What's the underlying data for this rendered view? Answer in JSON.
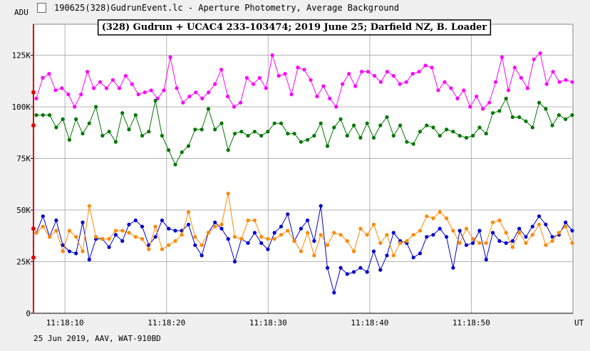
{
  "window": {
    "title": "190625(328)GudrunEvent.lc - Aperture Photometry, Average Background"
  },
  "footer": {
    "text": "25 Jun 2019, AAV, WAT-910BD"
  },
  "colors": {
    "background": "#ffffff",
    "grid": "#b4b4b4",
    "axis": "#000000",
    "left_axis_line": "#dd0000",
    "magenta": "#ff00ff",
    "green": "#007700",
    "blue": "#0000cc",
    "orange": "#ff8800"
  },
  "chart_data": {
    "type": "line",
    "title": "(328) Gudrun + UCAC4 233-103474; 2019 June 25; Darfield NZ, B. Loader",
    "ylabel": "ADU",
    "xlabel": "UT",
    "ylim": [
      0,
      140000
    ],
    "y_ticks": [
      0,
      25000,
      50000,
      75000,
      100000,
      125000
    ],
    "y_tick_labels": [
      "0",
      "25K",
      "50K",
      "75K",
      "100K",
      "125K"
    ],
    "x_ticks": [
      "11:18:10",
      "11:18:20",
      "11:18:30",
      "11:18:40",
      "11:18:50"
    ],
    "x_start": "11:18:06.9",
    "x_end": "11:19:00.0",
    "grid": true,
    "series": [
      {
        "color": "#ff00ff",
        "start_marker_value": 107000,
        "values": [
          104000,
          114000,
          116000,
          108000,
          109000,
          106000,
          100000,
          106000,
          117000,
          109000,
          112000,
          109000,
          113000,
          109000,
          115000,
          111000,
          106000,
          107000,
          108000,
          104000,
          108000,
          124000,
          109000,
          102000,
          105000,
          107000,
          104000,
          107000,
          111000,
          118000,
          105000,
          100000,
          102000,
          114000,
          111000,
          114000,
          109000,
          125000,
          115000,
          116000,
          106000,
          119000,
          118000,
          113000,
          105000,
          110000,
          104000,
          100000,
          111000,
          116000,
          110000,
          117000,
          117000,
          115000,
          112000,
          117000,
          115000,
          111000,
          112000,
          116000,
          117000,
          120000,
          119000,
          108000,
          112000,
          109000,
          104000,
          108000,
          100000,
          105000,
          99000,
          102000,
          112000,
          124000,
          108000,
          119000,
          114000,
          109000,
          123000,
          126000,
          111000,
          117000,
          112000,
          113000,
          112000
        ]
      },
      {
        "color": "#007700",
        "start_marker_value": 91000,
        "values": [
          96000,
          96000,
          96000,
          90000,
          94000,
          84000,
          94000,
          87000,
          92000,
          100000,
          86000,
          88000,
          83000,
          97000,
          89000,
          96000,
          86000,
          88000,
          103000,
          86000,
          79000,
          72000,
          78000,
          81000,
          89000,
          89000,
          99000,
          89000,
          92000,
          79000,
          87000,
          88000,
          86000,
          88000,
          86000,
          88000,
          92000,
          92000,
          87000,
          87000,
          83000,
          84000,
          86000,
          92000,
          81000,
          90000,
          94000,
          86000,
          91000,
          85000,
          92000,
          85000,
          91000,
          95000,
          86000,
          91000,
          83000,
          82000,
          88000,
          91000,
          90000,
          86000,
          89000,
          88000,
          86000,
          85000,
          86000,
          90000,
          87000,
          97000,
          98000,
          104000,
          95000,
          95000,
          93000,
          90000,
          102000,
          99000,
          91000,
          96000,
          94000,
          96000
        ]
      },
      {
        "color": "#0000cc",
        "start_marker_value": 27000,
        "values": [
          39000,
          47000,
          37000,
          45000,
          33000,
          30000,
          29000,
          44000,
          26000,
          36000,
          36000,
          32000,
          38000,
          35000,
          43000,
          45000,
          42000,
          33000,
          37000,
          45000,
          41000,
          40000,
          40000,
          43000,
          33000,
          28000,
          39000,
          44000,
          41000,
          36000,
          25000,
          36000,
          34000,
          39000,
          34000,
          31000,
          39000,
          42000,
          48000,
          35000,
          41000,
          45000,
          35000,
          52000,
          22000,
          10000,
          22000,
          19000,
          20000,
          22000,
          20000,
          30000,
          21000,
          28000,
          39000,
          35000,
          34000,
          27000,
          29000,
          37000,
          38000,
          41000,
          37000,
          22000,
          40000,
          33000,
          34000,
          40000,
          26000,
          39000,
          35000,
          34000,
          35000,
          41000,
          37000,
          42000,
          47000,
          43000,
          37000,
          38000,
          44000,
          40000
        ]
      },
      {
        "color": "#ff8800",
        "start_marker_value": 41000,
        "values": [
          39000,
          42000,
          37000,
          40000,
          30000,
          40000,
          37000,
          30000,
          52000,
          37000,
          36000,
          36000,
          40000,
          40000,
          39000,
          37000,
          36000,
          31000,
          42000,
          31000,
          33000,
          35000,
          38000,
          49000,
          37000,
          33000,
          39000,
          42000,
          43000,
          58000,
          37000,
          36000,
          45000,
          45000,
          37000,
          36000,
          36000,
          38000,
          40000,
          35000,
          30000,
          39000,
          28000,
          38000,
          33000,
          39000,
          38000,
          35000,
          30000,
          41000,
          38000,
          43000,
          34000,
          38000,
          28000,
          34000,
          35000,
          38000,
          40000,
          47000,
          46000,
          49000,
          46000,
          40000,
          34000,
          41000,
          36000,
          34000,
          34000,
          44000,
          45000,
          39000,
          32000,
          39000,
          34000,
          38000,
          43000,
          33000,
          35000,
          39000,
          42000,
          34000
        ]
      }
    ]
  }
}
